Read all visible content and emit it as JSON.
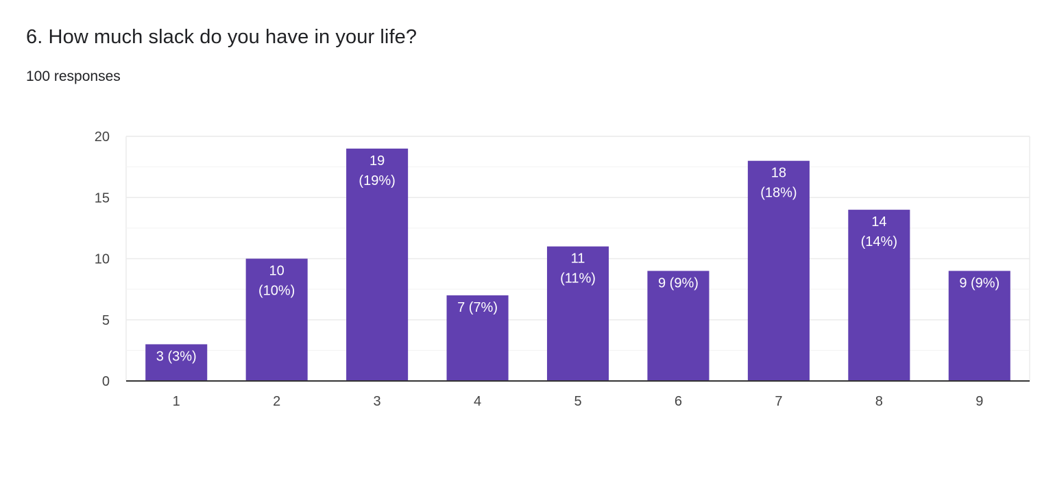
{
  "question": {
    "title": "6. How much slack do you have in your life?",
    "responses": "100 responses"
  },
  "colors": {
    "bar": "#6140b0",
    "grid": "#ebebeb",
    "axis": "#333333"
  },
  "chart_data": {
    "type": "bar",
    "categories": [
      "1",
      "2",
      "3",
      "4",
      "5",
      "6",
      "7",
      "8",
      "9"
    ],
    "values": [
      3,
      10,
      19,
      7,
      11,
      9,
      18,
      14,
      9
    ],
    "data_labels": [
      "3 (3%)",
      "10 (10%)",
      "19 (19%)",
      "7 (7%)",
      "11 (11%)",
      "9 (9%)",
      "18 (18%)",
      "14 (14%)",
      "9 (9%)"
    ],
    "ylim": [
      0,
      20
    ],
    "yticks": [
      0,
      5,
      10,
      15,
      20
    ],
    "minor_gridlines": true,
    "legend": "none"
  }
}
